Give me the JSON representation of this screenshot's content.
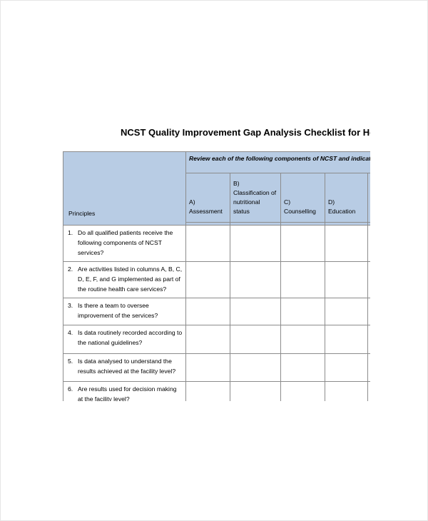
{
  "title": "NCST Quality Improvement Gap Analysis Checklist for Health Facilities",
  "table": {
    "principles_header": "Principles",
    "review_header": "Review each of the following components of NCST and indicate progress",
    "columns": [
      {
        "label_1": "A)",
        "label_2": "Assessment"
      },
      {
        "label_1": "B)",
        "label_2": "Classification of nutritional status"
      },
      {
        "label_1": "C)",
        "label_2": "Counselling"
      },
      {
        "label_1": "D)",
        "label_2": "Education"
      },
      {
        "label_1": "",
        "label_2": ""
      }
    ],
    "rows": [
      {
        "num": "1.",
        "text": "Do all qualified patients receive the following components of NCST services?"
      },
      {
        "num": "2.",
        "text": "Are activities listed in columns A, B, C, D, E, F, and G implemented as part of the routine health care services?"
      },
      {
        "num": "3.",
        "text": "Is there a team to oversee improvement of the services?"
      },
      {
        "num": "4.",
        "text": "Is data routinely recorded according to the national guidelines?"
      },
      {
        "num": "5.",
        "text": "Is data analysed to understand the results achieved at the facility level?"
      },
      {
        "num": "6.",
        "text": "Are results used for decision making at the facility level?"
      }
    ]
  }
}
